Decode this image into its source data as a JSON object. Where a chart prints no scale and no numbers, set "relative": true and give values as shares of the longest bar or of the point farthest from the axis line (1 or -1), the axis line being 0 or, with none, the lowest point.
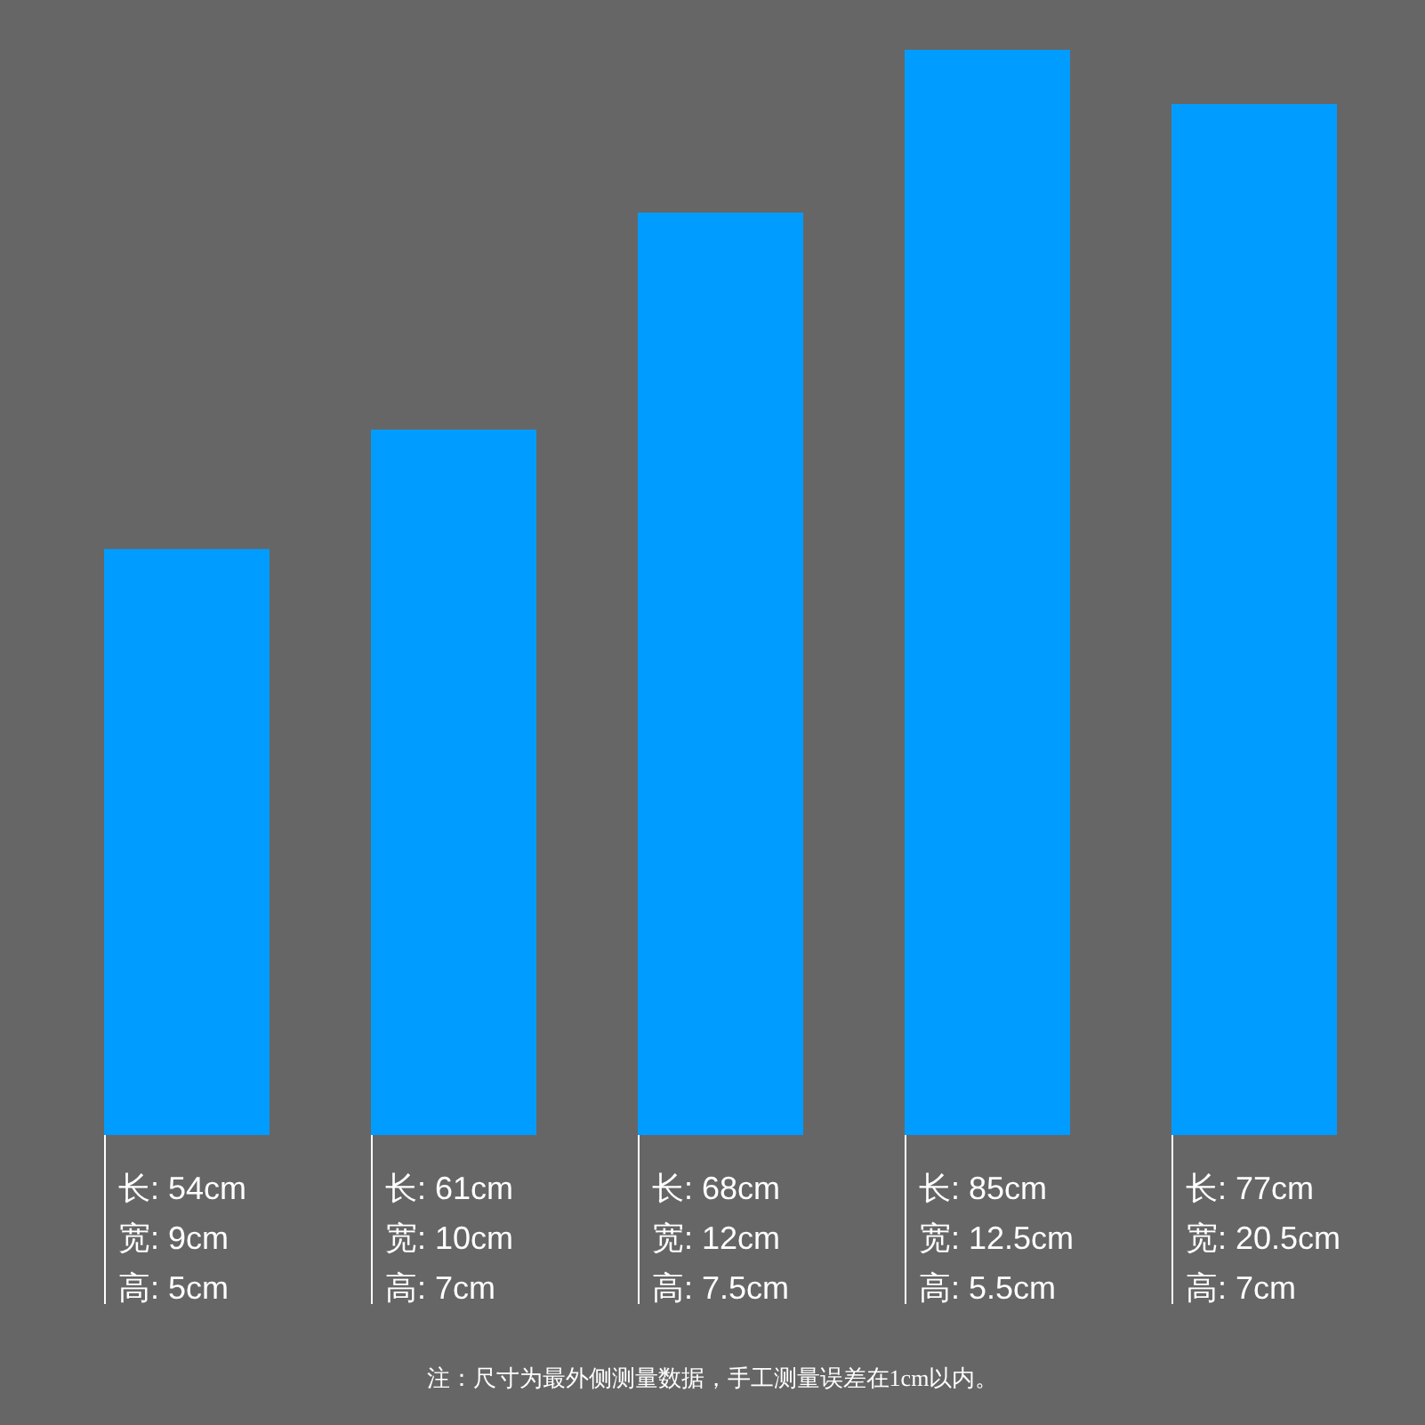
{
  "chart_data": {
    "type": "bar",
    "relative": true,
    "color": "#009cff",
    "categories": [
      "长: 54cm\n宽: 9cm\n高: 5cm",
      "长: 61cm\n宽: 10cm\n高: 7cm",
      "长: 68cm\n宽: 12cm\n高: 7.5cm",
      "长: 85cm\n宽: 12.5cm\n高: 5.5cm",
      "长: 77cm\n宽: 20.5cm\n高: 7cm"
    ],
    "values": [
      0.54,
      0.65,
      0.85,
      1,
      0.95
    ],
    "annotations": [
      "注：尺寸为最外侧测量数据，手工测量误差在1cm以内。"
    ]
  }
}
